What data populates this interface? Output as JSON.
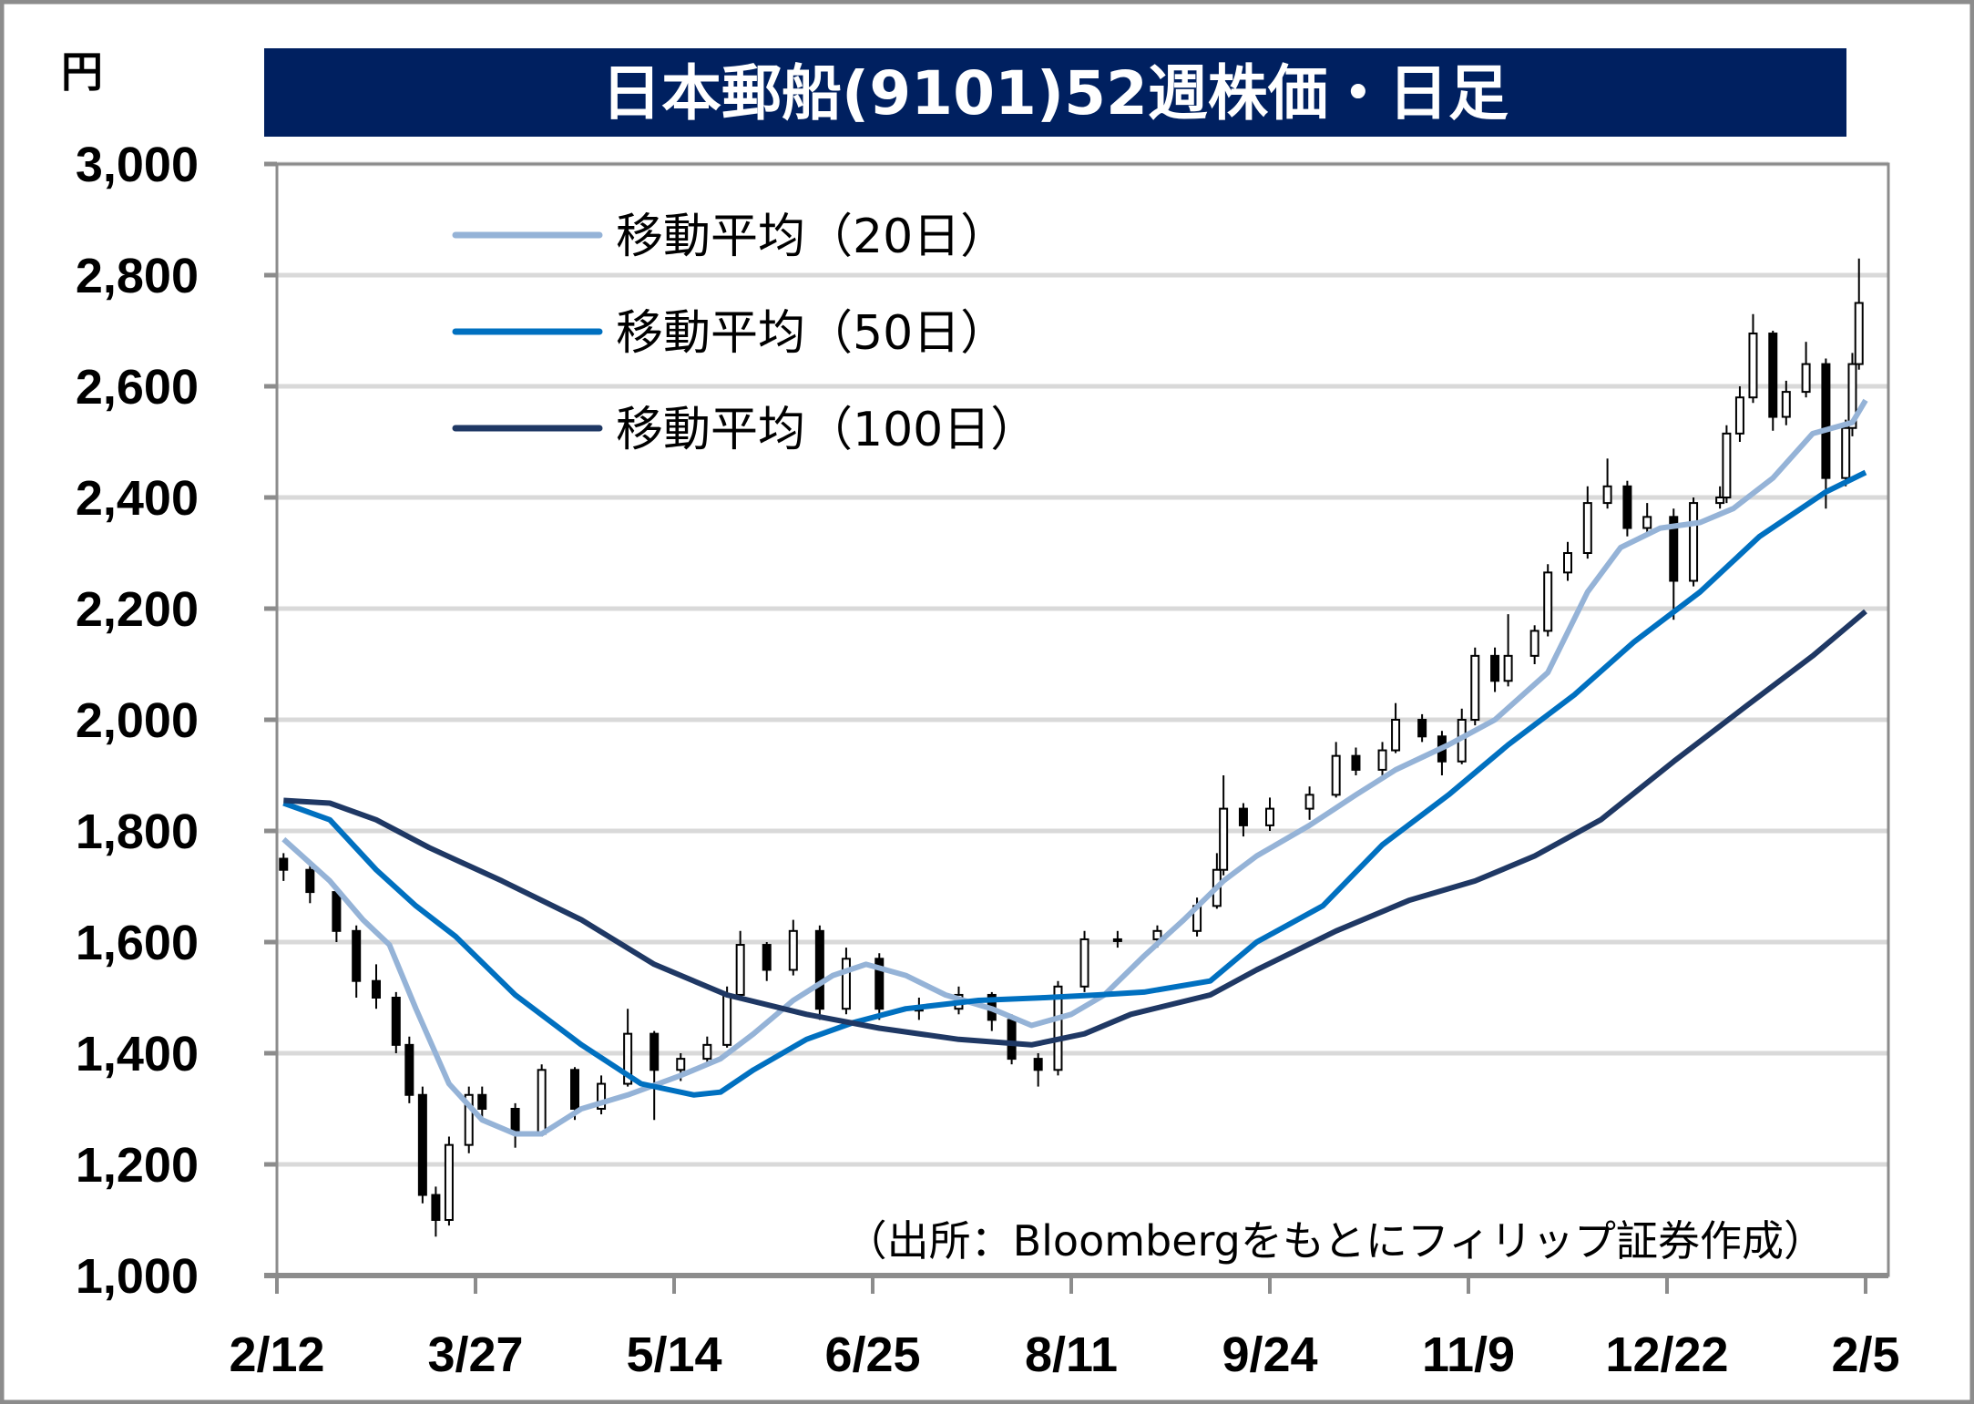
{
  "chart_data": {
    "type": "line",
    "title": "日本郵船(9101)52週株価・日足",
    "ylabel": "円",
    "xlabel": "",
    "ylim": [
      1000,
      3000
    ],
    "yticks": [
      1000,
      1200,
      1400,
      1600,
      1800,
      2000,
      2200,
      2400,
      2600,
      2800,
      3000
    ],
    "ytick_labels": [
      "1,000",
      "1,200",
      "1,400",
      "1,600",
      "1,800",
      "2,000",
      "2,200",
      "2,400",
      "2,600",
      "2,800",
      "3,000"
    ],
    "xlim": [
      0,
      240
    ],
    "xticks": [
      0,
      30,
      60,
      90,
      120,
      150,
      180,
      210,
      240
    ],
    "xtick_labels": [
      "2/12",
      "3/27",
      "5/14",
      "6/25",
      "8/11",
      "9/24",
      "11/9",
      "12/22",
      "2/5"
    ],
    "grid": true,
    "legend_position": "top-left",
    "source_note": "（出所：Bloombergをもとにフィリップ証券作成）",
    "candles_fields": [
      "day_index",
      "open",
      "high",
      "low",
      "close"
    ],
    "candles": [
      [
        1,
        1750,
        1760,
        1710,
        1730
      ],
      [
        5,
        1730,
        1740,
        1670,
        1690
      ],
      [
        9,
        1690,
        1700,
        1600,
        1620
      ],
      [
        12,
        1620,
        1630,
        1500,
        1530
      ],
      [
        15,
        1530,
        1560,
        1480,
        1500
      ],
      [
        18,
        1500,
        1510,
        1400,
        1415
      ],
      [
        20,
        1415,
        1430,
        1310,
        1325
      ],
      [
        22,
        1325,
        1340,
        1130,
        1145
      ],
      [
        24,
        1145,
        1160,
        1070,
        1100
      ],
      [
        26,
        1100,
        1250,
        1090,
        1235
      ],
      [
        29,
        1235,
        1340,
        1220,
        1325
      ],
      [
        31,
        1325,
        1340,
        1280,
        1300
      ],
      [
        36,
        1300,
        1310,
        1230,
        1255
      ],
      [
        40,
        1255,
        1380,
        1250,
        1370
      ],
      [
        45,
        1370,
        1375,
        1280,
        1300
      ],
      [
        49,
        1300,
        1360,
        1290,
        1345
      ],
      [
        53,
        1345,
        1480,
        1340,
        1435
      ],
      [
        57,
        1435,
        1440,
        1280,
        1370
      ],
      [
        61,
        1370,
        1400,
        1350,
        1390
      ],
      [
        65,
        1390,
        1430,
        1380,
        1415
      ],
      [
        68,
        1415,
        1520,
        1410,
        1505
      ],
      [
        70,
        1505,
        1620,
        1500,
        1595
      ],
      [
        74,
        1595,
        1600,
        1530,
        1550
      ],
      [
        78,
        1550,
        1640,
        1540,
        1620
      ],
      [
        82,
        1620,
        1630,
        1460,
        1480
      ],
      [
        86,
        1480,
        1590,
        1470,
        1570
      ],
      [
        91,
        1570,
        1580,
        1460,
        1480
      ],
      [
        97,
        1480,
        1500,
        1460,
        1480
      ],
      [
        103,
        1480,
        1520,
        1470,
        1505
      ],
      [
        108,
        1505,
        1510,
        1440,
        1460
      ],
      [
        111,
        1460,
        1470,
        1380,
        1390
      ],
      [
        115,
        1390,
        1400,
        1340,
        1370
      ],
      [
        118,
        1370,
        1530,
        1360,
        1520
      ],
      [
        122,
        1520,
        1620,
        1510,
        1605
      ],
      [
        127,
        1605,
        1620,
        1590,
        1605
      ],
      [
        133,
        1605,
        1630,
        1590,
        1620
      ],
      [
        139,
        1620,
        1680,
        1610,
        1665
      ],
      [
        142,
        1665,
        1760,
        1660,
        1730
      ],
      [
        143,
        1730,
        1900,
        1720,
        1840
      ],
      [
        146,
        1840,
        1850,
        1790,
        1810
      ],
      [
        150,
        1810,
        1860,
        1800,
        1840
      ],
      [
        156,
        1840,
        1880,
        1820,
        1865
      ],
      [
        160,
        1865,
        1960,
        1860,
        1935
      ],
      [
        163,
        1935,
        1950,
        1900,
        1910
      ],
      [
        167,
        1910,
        1960,
        1900,
        1945
      ],
      [
        169,
        1945,
        2030,
        1940,
        2000
      ],
      [
        173,
        2000,
        2010,
        1960,
        1970
      ],
      [
        176,
        1970,
        1980,
        1900,
        1925
      ],
      [
        179,
        1925,
        2020,
        1920,
        2000
      ],
      [
        181,
        2000,
        2130,
        1990,
        2115
      ],
      [
        184,
        2115,
        2130,
        2050,
        2070
      ],
      [
        186,
        2070,
        2190,
        2060,
        2115
      ],
      [
        190,
        2115,
        2170,
        2100,
        2160
      ],
      [
        192,
        2160,
        2280,
        2150,
        2265
      ],
      [
        195,
        2265,
        2320,
        2250,
        2300
      ],
      [
        198,
        2300,
        2420,
        2290,
        2390
      ],
      [
        201,
        2390,
        2470,
        2380,
        2420
      ],
      [
        204,
        2420,
        2430,
        2330,
        2345
      ],
      [
        207,
        2345,
        2390,
        2330,
        2365
      ],
      [
        211,
        2365,
        2380,
        2180,
        2250
      ],
      [
        214,
        2250,
        2400,
        2240,
        2390
      ],
      [
        218,
        2390,
        2420,
        2380,
        2400
      ],
      [
        219,
        2400,
        2530,
        2390,
        2515
      ],
      [
        221,
        2515,
        2600,
        2500,
        2580
      ],
      [
        223,
        2580,
        2730,
        2570,
        2695
      ],
      [
        226,
        2695,
        2700,
        2520,
        2545
      ],
      [
        228,
        2545,
        2610,
        2530,
        2590
      ],
      [
        231,
        2590,
        2680,
        2580,
        2640
      ],
      [
        234,
        2640,
        2650,
        2380,
        2435
      ],
      [
        237,
        2435,
        2540,
        2420,
        2525
      ],
      [
        238,
        2525,
        2660,
        2510,
        2640
      ],
      [
        239,
        2640,
        2830,
        2630,
        2750
      ]
    ],
    "series": [
      {
        "name": "移動平均（20日）",
        "color": "#95B3D7",
        "points": [
          [
            1,
            1785
          ],
          [
            8,
            1710
          ],
          [
            13,
            1640
          ],
          [
            17,
            1595
          ],
          [
            21,
            1480
          ],
          [
            26,
            1345
          ],
          [
            31,
            1280
          ],
          [
            36,
            1255
          ],
          [
            40,
            1255
          ],
          [
            46,
            1300
          ],
          [
            53,
            1325
          ],
          [
            61,
            1360
          ],
          [
            67,
            1390
          ],
          [
            72,
            1435
          ],
          [
            78,
            1495
          ],
          [
            84,
            1540
          ],
          [
            89,
            1560
          ],
          [
            95,
            1540
          ],
          [
            101,
            1505
          ],
          [
            108,
            1480
          ],
          [
            114,
            1450
          ],
          [
            120,
            1470
          ],
          [
            125,
            1505
          ],
          [
            131,
            1575
          ],
          [
            137,
            1640
          ],
          [
            143,
            1710
          ],
          [
            148,
            1755
          ],
          [
            156,
            1810
          ],
          [
            163,
            1865
          ],
          [
            169,
            1910
          ],
          [
            177,
            1955
          ],
          [
            184,
            2000
          ],
          [
            192,
            2085
          ],
          [
            198,
            2230
          ],
          [
            203,
            2310
          ],
          [
            209,
            2345
          ],
          [
            215,
            2355
          ],
          [
            220,
            2380
          ],
          [
            226,
            2435
          ],
          [
            232,
            2515
          ],
          [
            238,
            2535
          ],
          [
            240,
            2575
          ]
        ]
      },
      {
        "name": "移動平均（50日）",
        "color": "#0070C0",
        "points": [
          [
            1,
            1850
          ],
          [
            8,
            1820
          ],
          [
            15,
            1730
          ],
          [
            21,
            1665
          ],
          [
            27,
            1610
          ],
          [
            36,
            1505
          ],
          [
            46,
            1415
          ],
          [
            55,
            1345
          ],
          [
            63,
            1325
          ],
          [
            67,
            1330
          ],
          [
            72,
            1370
          ],
          [
            80,
            1425
          ],
          [
            87,
            1455
          ],
          [
            95,
            1480
          ],
          [
            106,
            1495
          ],
          [
            116,
            1500
          ],
          [
            124,
            1505
          ],
          [
            131,
            1510
          ],
          [
            141,
            1530
          ],
          [
            148,
            1600
          ],
          [
            158,
            1665
          ],
          [
            167,
            1775
          ],
          [
            177,
            1865
          ],
          [
            186,
            1955
          ],
          [
            196,
            2045
          ],
          [
            205,
            2140
          ],
          [
            215,
            2230
          ],
          [
            224,
            2330
          ],
          [
            234,
            2410
          ],
          [
            240,
            2445
          ]
        ]
      },
      {
        "name": "移動平均（100日）",
        "color": "#1F3864",
        "points": [
          [
            1,
            1855
          ],
          [
            8,
            1850
          ],
          [
            15,
            1820
          ],
          [
            23,
            1770
          ],
          [
            34,
            1710
          ],
          [
            46,
            1640
          ],
          [
            57,
            1560
          ],
          [
            68,
            1505
          ],
          [
            80,
            1470
          ],
          [
            91,
            1445
          ],
          [
            103,
            1425
          ],
          [
            114,
            1415
          ],
          [
            122,
            1435
          ],
          [
            129,
            1470
          ],
          [
            141,
            1505
          ],
          [
            148,
            1550
          ],
          [
            160,
            1620
          ],
          [
            171,
            1675
          ],
          [
            181,
            1710
          ],
          [
            190,
            1755
          ],
          [
            200,
            1820
          ],
          [
            211,
            1925
          ],
          [
            222,
            2025
          ],
          [
            232,
            2115
          ],
          [
            240,
            2195
          ]
        ]
      }
    ]
  }
}
